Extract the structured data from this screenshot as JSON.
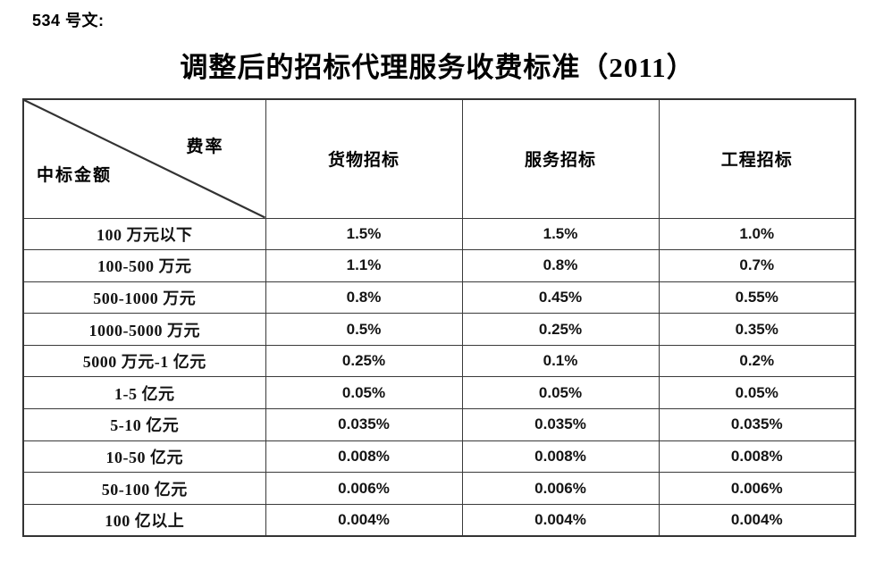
{
  "doc": {
    "ref": "534 号文:",
    "title": "调整后的招标代理服务收费标准（2011）"
  },
  "table": {
    "corner": {
      "top_right": "费率",
      "bottom_left": "中标金额"
    },
    "columns": [
      "货物招标",
      "服务招标",
      "工程招标"
    ],
    "rows": [
      {
        "amount": "100 万元以下",
        "values": [
          "1.5%",
          "1.5%",
          "1.0%"
        ]
      },
      {
        "amount": "100-500 万元",
        "values": [
          "1.1%",
          "0.8%",
          "0.7%"
        ]
      },
      {
        "amount": "500-1000 万元",
        "values": [
          "0.8%",
          "0.45%",
          "0.55%"
        ]
      },
      {
        "amount": "1000-5000 万元",
        "values": [
          "0.5%",
          "0.25%",
          "0.35%"
        ]
      },
      {
        "amount": "5000 万元-1 亿元",
        "values": [
          "0.25%",
          "0.1%",
          "0.2%"
        ]
      },
      {
        "amount": "1-5 亿元",
        "values": [
          "0.05%",
          "0.05%",
          "0.05%"
        ]
      },
      {
        "amount": "5-10 亿元",
        "values": [
          "0.035%",
          "0.035%",
          "0.035%"
        ]
      },
      {
        "amount": "10-50 亿元",
        "values": [
          "0.008%",
          "0.008%",
          "0.008%"
        ]
      },
      {
        "amount": "50-100 亿元",
        "values": [
          "0.006%",
          "0.006%",
          "0.006%"
        ]
      },
      {
        "amount": "100 亿以上",
        "values": [
          "0.004%",
          "0.004%",
          "0.004%"
        ]
      }
    ],
    "colors": {
      "border": "#3a3a3a",
      "text": "#111111",
      "background": "#ffffff"
    }
  }
}
